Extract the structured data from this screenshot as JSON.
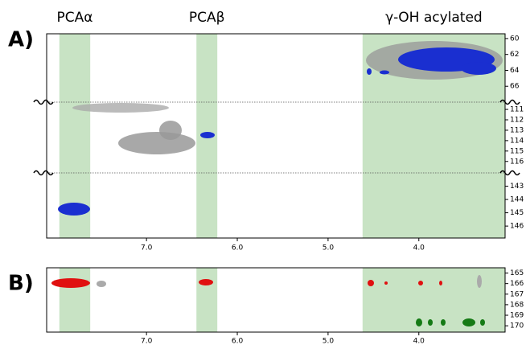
{
  "chart_data": [
    {
      "type": "contour",
      "panel_label": "A)",
      "xlim": [
        8.1,
        3.05
      ],
      "xticks": [
        {
          "value": 7,
          "label": "7.0"
        },
        {
          "value": 6,
          "label": "6.0"
        },
        {
          "value": 5,
          "label": "5.0"
        },
        {
          "value": 4,
          "label": "4.0"
        }
      ],
      "bands": [
        {
          "label": "PCAα",
          "range": [
            7.96,
            7.62
          ]
        },
        {
          "label": "PCAβ",
          "range": [
            6.45,
            6.22
          ]
        },
        {
          "label": "γ-OH acylated",
          "range": [
            4.62,
            3.05
          ]
        }
      ],
      "segments": [
        {
          "ylim": [
            59.4,
            68.0
          ],
          "yticks": [
            60,
            62,
            64,
            66
          ]
        },
        {
          "ylim": [
            110.3,
            117.1
          ],
          "yticks": [
            111,
            112,
            113,
            114,
            115,
            116
          ]
        },
        {
          "ylim": [
            142.0,
            146.9
          ],
          "yticks": [
            143,
            144,
            145,
            146
          ]
        }
      ]
    },
    {
      "type": "contour",
      "panel_label": "B)",
      "xlim": [
        8.1,
        3.05
      ],
      "xticks": [
        {
          "value": 7,
          "label": "7.0"
        },
        {
          "value": 6,
          "label": "6.0"
        },
        {
          "value": 5,
          "label": "5.0"
        },
        {
          "value": 4,
          "label": "4.0"
        }
      ],
      "bands": [
        {
          "range": [
            7.96,
            7.62
          ]
        },
        {
          "range": [
            6.45,
            6.22
          ]
        },
        {
          "range": [
            4.62,
            3.05
          ]
        }
      ],
      "segments": [
        {
          "ylim": [
            164.5,
            170.6
          ],
          "yticks": [
            165,
            166,
            167,
            168,
            169,
            170
          ]
        }
      ]
    }
  ]
}
